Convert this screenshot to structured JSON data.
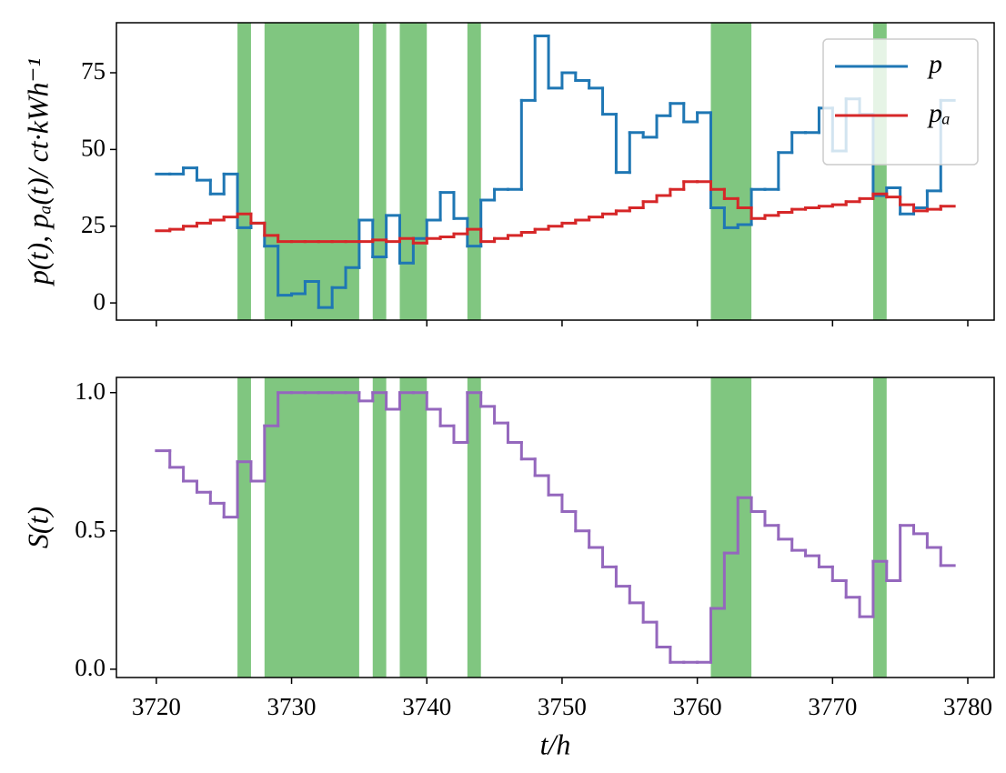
{
  "chart_data": [
    {
      "type": "line",
      "drawstyle": "steps-post",
      "ylabel": "p(t), pₐ(t)/ ct·kWh⁻¹",
      "x": [
        3720,
        3721,
        3722,
        3723,
        3724,
        3725,
        3726,
        3727,
        3728,
        3729,
        3730,
        3731,
        3732,
        3733,
        3734,
        3735,
        3736,
        3737,
        3738,
        3739,
        3740,
        3741,
        3742,
        3743,
        3744,
        3745,
        3746,
        3747,
        3748,
        3749,
        3750,
        3751,
        3752,
        3753,
        3754,
        3755,
        3756,
        3757,
        3758,
        3759,
        3760,
        3761,
        3762,
        3763,
        3764,
        3765,
        3766,
        3767,
        3768,
        3769,
        3770,
        3771,
        3772,
        3773,
        3774,
        3775,
        3776,
        3777,
        3778
      ],
      "series": [
        {
          "name": "p",
          "color": "#1f77b4",
          "values": [
            42,
            42,
            44,
            40,
            35.5,
            42,
            24.5,
            26,
            18.5,
            2.5,
            3,
            7,
            -1.5,
            5,
            11.5,
            27,
            15,
            28.5,
            13,
            21,
            27,
            36,
            27.5,
            18.5,
            33.5,
            37,
            37,
            66,
            87,
            70,
            75,
            72.5,
            70,
            61.5,
            42.5,
            55.5,
            54,
            61,
            65,
            59,
            62,
            31,
            24.5,
            25.5,
            37,
            37,
            49,
            55.5,
            55.5,
            63.5,
            49.5,
            66.5,
            61.5,
            35,
            37.5,
            29,
            31,
            36.5,
            66
          ]
        },
        {
          "name": "pₐ",
          "color": "#d62728",
          "values": [
            23.5,
            24,
            25,
            26,
            27,
            28,
            29,
            26,
            22,
            20,
            20,
            20,
            20,
            20,
            20,
            20,
            20.5,
            20,
            21,
            19.5,
            21,
            21.5,
            22.5,
            24,
            20,
            21,
            22,
            23,
            24,
            25,
            26,
            27,
            28,
            29,
            30,
            31,
            33,
            35,
            37,
            39.5,
            39.5,
            37,
            34,
            31,
            27.5,
            28.5,
            29.5,
            30.5,
            31,
            31.5,
            32,
            33,
            34,
            35.5,
            34.5,
            32,
            30,
            30.5,
            31.5
          ]
        }
      ],
      "spans": [
        [
          3726,
          3727
        ],
        [
          3728,
          3735
        ],
        [
          3736,
          3737
        ],
        [
          3738,
          3740
        ],
        [
          3743,
          3744
        ],
        [
          3761,
          3764
        ],
        [
          3773,
          3774
        ]
      ],
      "span_color": "#2ca02c",
      "xlim": [
        3717.05,
        3781.95
      ],
      "xticks": [
        3720,
        3730,
        3740,
        3750,
        3760,
        3770,
        3780
      ],
      "ylim": [
        -5.6,
        91.3
      ],
      "yticks": [
        0,
        25,
        50,
        75
      ],
      "legend": "upper right"
    },
    {
      "type": "line",
      "drawstyle": "steps-post",
      "ylabel": "S(t)",
      "xlabel": "t/h",
      "x": [
        3720,
        3721,
        3722,
        3723,
        3724,
        3725,
        3726,
        3727,
        3728,
        3729,
        3730,
        3731,
        3732,
        3733,
        3734,
        3735,
        3736,
        3737,
        3738,
        3739,
        3740,
        3741,
        3742,
        3743,
        3744,
        3745,
        3746,
        3747,
        3748,
        3749,
        3750,
        3751,
        3752,
        3753,
        3754,
        3755,
        3756,
        3757,
        3758,
        3759,
        3760,
        3761,
        3762,
        3763,
        3764,
        3765,
        3766,
        3767,
        3768,
        3769,
        3770,
        3771,
        3772,
        3773,
        3774,
        3775,
        3776,
        3777,
        3778
      ],
      "series": [
        {
          "color": "#9467bd",
          "values": [
            0.79,
            0.73,
            0.68,
            0.64,
            0.6,
            0.55,
            0.75,
            0.68,
            0.88,
            1,
            1,
            1,
            1,
            1,
            1,
            0.97,
            1,
            0.94,
            1,
            1,
            0.94,
            0.88,
            0.82,
            1,
            0.95,
            0.89,
            0.82,
            0.76,
            0.7,
            0.63,
            0.57,
            0.5,
            0.44,
            0.37,
            0.3,
            0.24,
            0.17,
            0.08,
            0.025,
            0.025,
            0.025,
            0.22,
            0.42,
            0.62,
            0.57,
            0.52,
            0.47,
            0.43,
            0.41,
            0.37,
            0.32,
            0.26,
            0.19,
            0.39,
            0.32,
            0.52,
            0.49,
            0.44,
            0.375
          ]
        }
      ],
      "spans": [
        [
          3726,
          3727
        ],
        [
          3728,
          3735
        ],
        [
          3736,
          3737
        ],
        [
          3738,
          3740
        ],
        [
          3743,
          3744
        ],
        [
          3761,
          3764
        ],
        [
          3773,
          3774
        ]
      ],
      "span_color": "#2ca02c",
      "xlim": [
        3717.05,
        3781.95
      ],
      "xticks": [
        3720,
        3730,
        3740,
        3750,
        3760,
        3770,
        3780
      ],
      "ylim": [
        -0.03,
        1.055
      ],
      "yticks": [
        {
          "value": 0,
          "label": "0.0"
        },
        0.5,
        {
          "value": 1,
          "label": "1.0"
        }
      ]
    }
  ]
}
